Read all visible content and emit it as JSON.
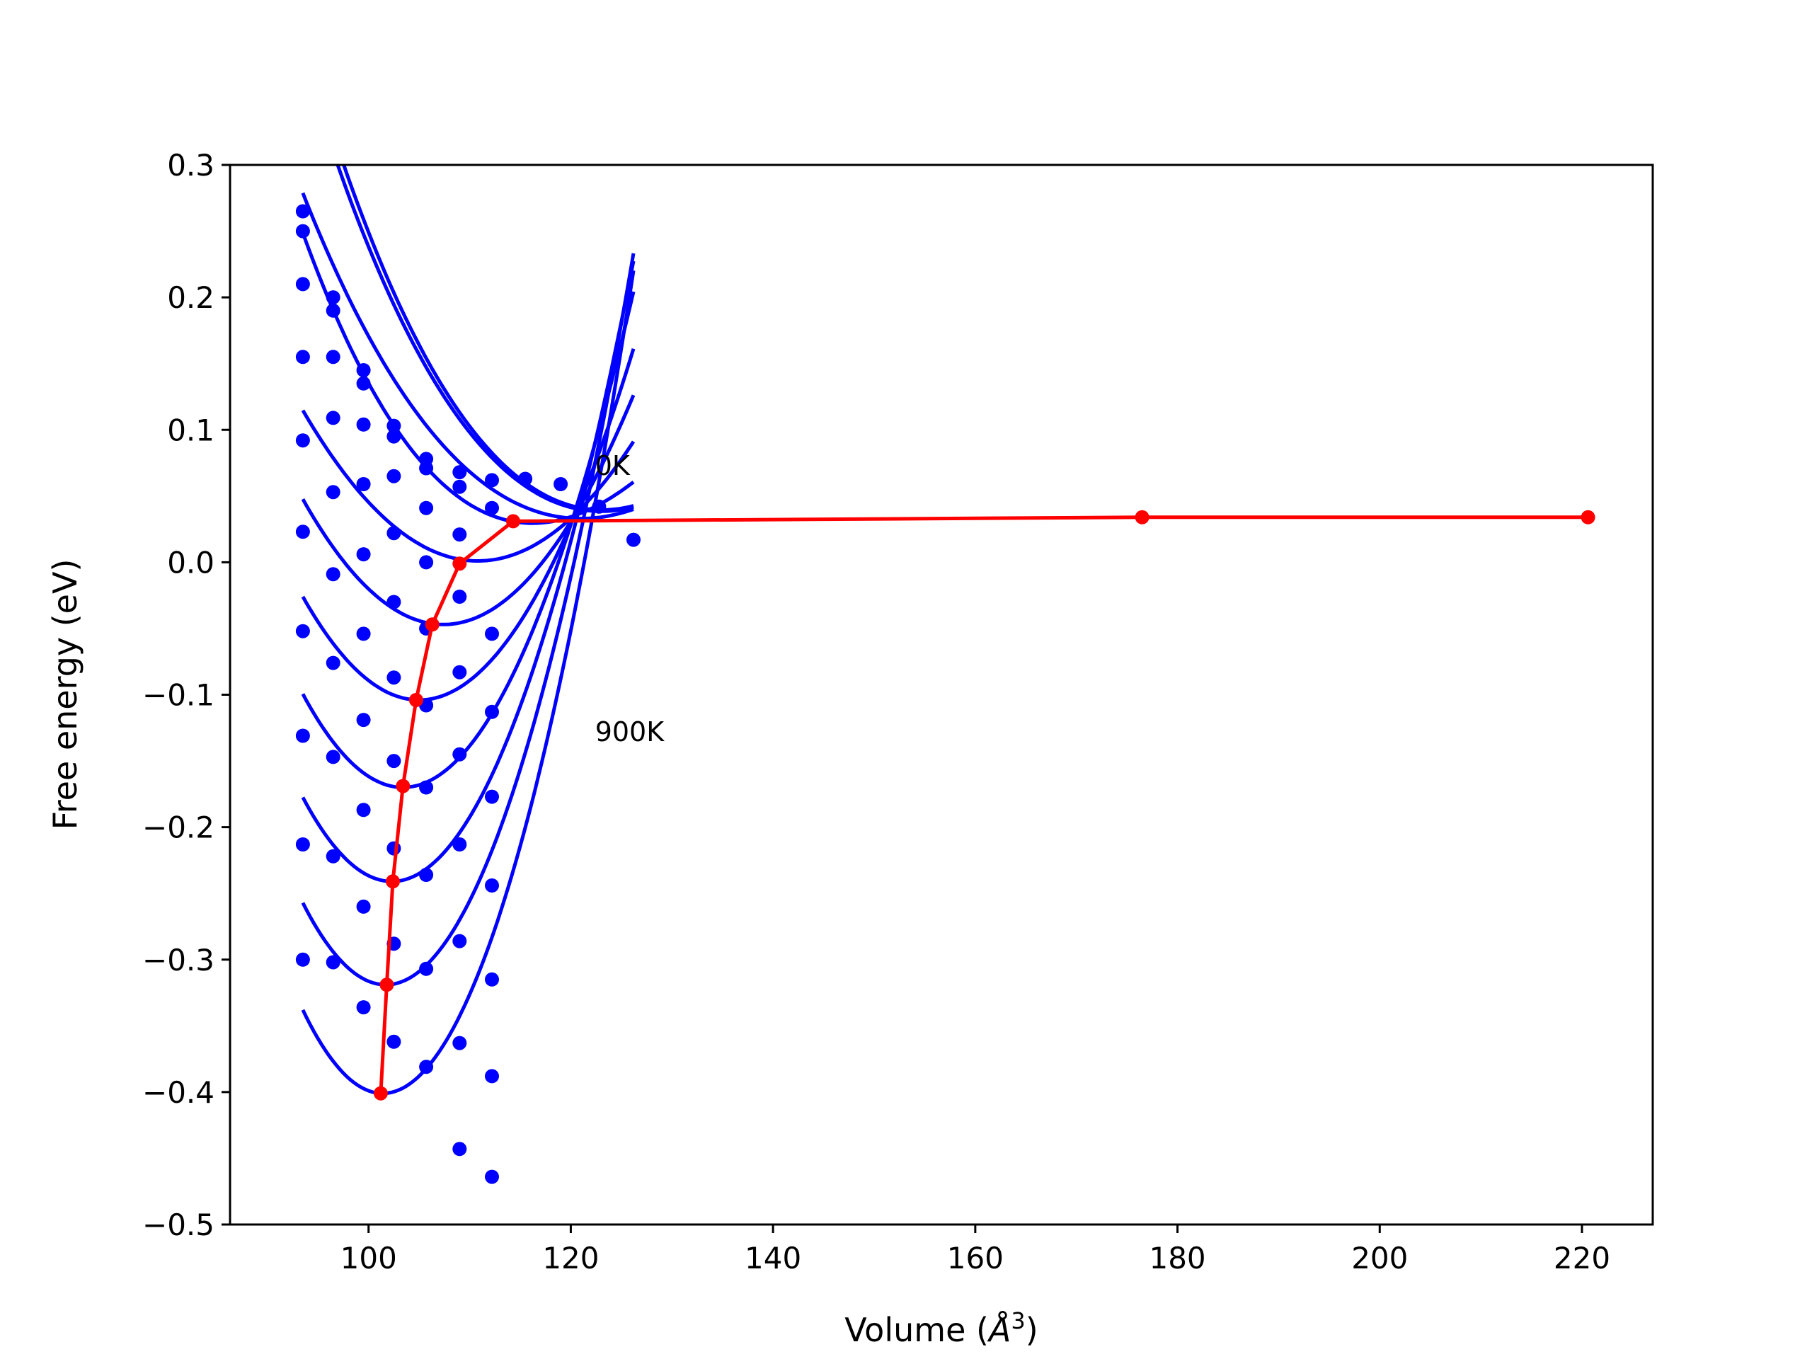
{
  "chart_data": {
    "type": "line",
    "title": "",
    "xlabel": "Volume ($\\AA^3$)",
    "xlabel_parts": {
      "prefix": "Volume (",
      "symbol": "Å",
      "sup": "3",
      "suffix": ")"
    },
    "ylabel": "Free energy (eV)",
    "xlim": [
      86.3,
      227.0
    ],
    "ylim": [
      -0.5,
      0.3
    ],
    "xticks": [
      100,
      120,
      140,
      160,
      180,
      200,
      220
    ],
    "xtick_labels": [
      "100",
      "120",
      "140",
      "160",
      "180",
      "200",
      "220"
    ],
    "yticks": [
      -0.5,
      -0.4,
      -0.3,
      -0.2,
      -0.1,
      0.0,
      0.1,
      0.2,
      0.3
    ],
    "ytick_labels": [
      "−0.5",
      "−0.4",
      "−0.3",
      "−0.2",
      "−0.1",
      "0.0",
      "0.1",
      "0.2",
      "0.3"
    ],
    "grid": false,
    "annotations": [
      {
        "text": "0K",
        "x": 122.4,
        "y": 0.066
      },
      {
        "text": "900K",
        "x": 122.4,
        "y": -0.135
      }
    ],
    "colors": {
      "fit_curves": "#0000ff",
      "data_points": "#0000ff",
      "minimum_path": "#ff0000"
    },
    "fit_curves": [
      {
        "vmin": 123.1,
        "emin": 0.0395,
        "b": 0.000335,
        "c": -2.5e-06,
        "xstart": 93.5,
        "xend": 126.2
      },
      {
        "vmin": 123.0,
        "emin": 0.0385,
        "b": 0.00032,
        "c": -2.5e-06,
        "xstart": 93.5,
        "xend": 126.2
      },
      {
        "vmin": 121.0,
        "emin": 0.033,
        "b": 0.00027,
        "c": -2e-06,
        "xstart": 93.5,
        "xend": 126.2
      },
      {
        "vmin": 116.2,
        "emin": 0.0295,
        "b": 0.000346,
        "c": -3.5e-06,
        "xstart": 93.5,
        "xend": 126.2
      },
      {
        "vmin": 110.8,
        "emin": 0.001,
        "b": 0.00038,
        "c": 0.0,
        "xstart": 93.5,
        "xend": 126.2
      },
      {
        "vmin": 107.4,
        "emin": -0.047,
        "b": 0.00049,
        "c": 0.0,
        "xstart": 93.5,
        "xend": 126.2
      },
      {
        "vmin": 105.0,
        "emin": -0.104,
        "b": 0.00059,
        "c": 0.0,
        "xstart": 93.5,
        "xend": 126.2
      },
      {
        "vmin": 103.4,
        "emin": -0.17,
        "b": 0.00072,
        "c": 0.0,
        "xstart": 93.5,
        "xend": 126.2
      },
      {
        "vmin": 102.3,
        "emin": -0.241,
        "b": 0.00082,
        "c": 0.0,
        "xstart": 93.5,
        "xend": 126.2
      },
      {
        "vmin": 101.7,
        "emin": -0.319,
        "b": 0.00092,
        "c": 0.0,
        "xstart": 93.5,
        "xend": 126.2
      },
      {
        "vmin": 101.4,
        "emin": -0.401,
        "b": 0.00101,
        "c": 0.0,
        "xstart": 93.5,
        "xend": 126.2
      }
    ],
    "data_points": [
      [
        93.5,
        0.265
      ],
      [
        93.5,
        0.25
      ],
      [
        93.5,
        0.21
      ],
      [
        93.5,
        0.155
      ],
      [
        93.5,
        0.092
      ],
      [
        93.5,
        0.023
      ],
      [
        93.5,
        -0.052
      ],
      [
        93.5,
        -0.131
      ],
      [
        93.5,
        -0.213
      ],
      [
        93.5,
        -0.3
      ],
      [
        96.5,
        0.2
      ],
      [
        96.5,
        0.19
      ],
      [
        96.5,
        0.155
      ],
      [
        96.5,
        0.109
      ],
      [
        96.5,
        0.053
      ],
      [
        96.5,
        -0.009
      ],
      [
        96.5,
        -0.076
      ],
      [
        96.5,
        -0.147
      ],
      [
        96.5,
        -0.222
      ],
      [
        96.5,
        -0.302
      ],
      [
        99.5,
        0.145
      ],
      [
        99.5,
        0.135
      ],
      [
        99.5,
        0.104
      ],
      [
        99.5,
        0.059
      ],
      [
        99.5,
        0.006
      ],
      [
        99.5,
        -0.054
      ],
      [
        99.5,
        -0.119
      ],
      [
        99.5,
        -0.187
      ],
      [
        99.5,
        -0.26
      ],
      [
        99.5,
        -0.336
      ],
      [
        102.5,
        0.103
      ],
      [
        102.5,
        0.095
      ],
      [
        102.5,
        0.065
      ],
      [
        102.5,
        0.022
      ],
      [
        102.5,
        -0.03
      ],
      [
        102.5,
        -0.087
      ],
      [
        102.5,
        -0.15
      ],
      [
        102.5,
        -0.216
      ],
      [
        102.5,
        -0.288
      ],
      [
        102.5,
        -0.362
      ],
      [
        105.7,
        0.078
      ],
      [
        105.7,
        0.071
      ],
      [
        105.7,
        0.041
      ],
      [
        105.7,
        0.0
      ],
      [
        105.7,
        -0.05
      ],
      [
        105.7,
        -0.108
      ],
      [
        105.7,
        -0.17
      ],
      [
        105.7,
        -0.236
      ],
      [
        105.7,
        -0.307
      ],
      [
        105.7,
        -0.381
      ],
      [
        109.0,
        0.068
      ],
      [
        109.0,
        0.057
      ],
      [
        109.0,
        0.021
      ],
      [
        109.0,
        -0.026
      ],
      [
        109.0,
        -0.083
      ],
      [
        109.0,
        -0.145
      ],
      [
        109.0,
        -0.213
      ],
      [
        109.0,
        -0.286
      ],
      [
        109.0,
        -0.363
      ],
      [
        109.0,
        -0.443
      ],
      [
        112.2,
        0.062
      ],
      [
        112.2,
        0.041
      ],
      [
        112.2,
        -0.054
      ],
      [
        112.2,
        -0.113
      ],
      [
        112.2,
        -0.177
      ],
      [
        112.2,
        -0.244
      ],
      [
        112.2,
        -0.315
      ],
      [
        112.2,
        -0.388
      ],
      [
        112.2,
        -0.464
      ],
      [
        115.5,
        0.063
      ],
      [
        119.0,
        0.059
      ],
      [
        122.8,
        0.042
      ],
      [
        126.2,
        0.017
      ]
    ],
    "minimum_path": {
      "x": [
        101.2,
        101.8,
        102.4,
        103.4,
        104.7,
        106.3,
        109.0,
        114.3,
        176.5,
        220.6
      ],
      "y": [
        -0.401,
        -0.319,
        -0.241,
        -0.169,
        -0.104,
        -0.047,
        -0.001,
        0.031,
        0.034,
        0.034
      ]
    }
  }
}
